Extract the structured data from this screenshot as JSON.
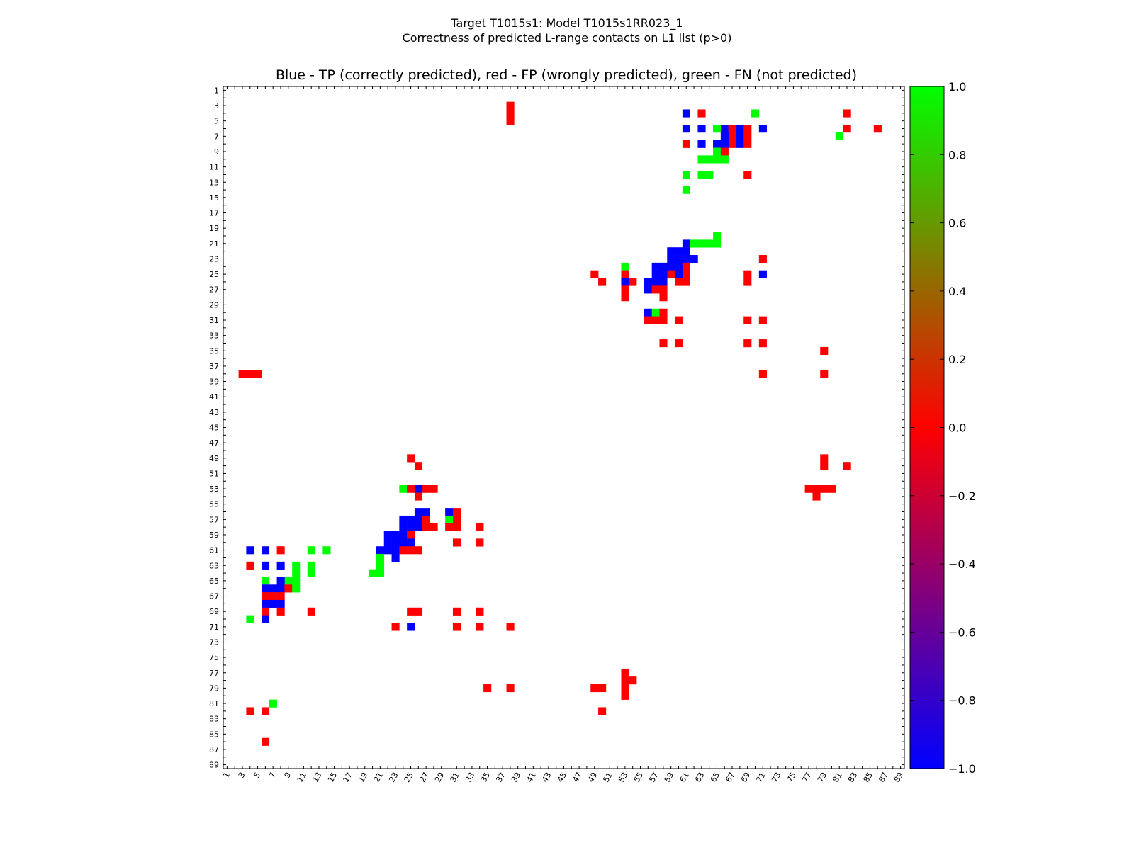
{
  "chart_data": {
    "type": "heatmap",
    "suptitle": [
      "Target T1015s1: Model T1015s1RR023_1",
      "Correctness of predicted L-range contacts on L1 list (p>0)"
    ],
    "title": "Blue - TP (correctly predicted), red - FP (wrongly predicted), green - FN (not predicted)",
    "n_residues": 89,
    "x_ticks": [
      1,
      3,
      5,
      7,
      9,
      11,
      13,
      15,
      17,
      19,
      21,
      23,
      25,
      27,
      29,
      31,
      33,
      35,
      37,
      39,
      41,
      43,
      45,
      47,
      49,
      51,
      53,
      55,
      57,
      59,
      61,
      63,
      65,
      67,
      69,
      71,
      73,
      75,
      77,
      79,
      81,
      83,
      85,
      87,
      89
    ],
    "y_ticks": [
      1,
      3,
      5,
      7,
      9,
      11,
      13,
      15,
      17,
      19,
      21,
      23,
      25,
      27,
      29,
      31,
      33,
      35,
      37,
      39,
      41,
      43,
      45,
      47,
      49,
      51,
      53,
      55,
      57,
      59,
      61,
      63,
      65,
      67,
      69,
      71,
      73,
      75,
      77,
      79,
      81,
      83,
      85,
      87,
      89
    ],
    "colorbar": {
      "min": -1.0,
      "max": 1.0,
      "colors": [
        "#0000ff",
        "#ff0000",
        "#00ff00"
      ],
      "ticks": [
        "1.0",
        "0.8",
        "0.6",
        "0.4",
        "0.2",
        "0.0",
        "−0.2",
        "−0.4",
        "−0.6",
        "−0.8",
        "−1.0"
      ]
    },
    "legend": {
      "TP": -1,
      "FP": 0,
      "FN": 1
    },
    "cells": [
      {
        "c": "fp",
        "y": [
          3,
          4,
          5
        ],
        "x": [
          38
        ]
      },
      {
        "c": "tp",
        "y": [
          4
        ],
        "x": [
          61
        ]
      },
      {
        "c": "fp",
        "y": [
          4
        ],
        "x": [
          63,
          82
        ]
      },
      {
        "c": "fn",
        "y": [
          4
        ],
        "x": [
          70
        ]
      },
      {
        "c": "tp",
        "y": [
          6
        ],
        "x": [
          61,
          63,
          66,
          68,
          71
        ]
      },
      {
        "c": "fn",
        "y": [
          6
        ],
        "x": [
          65
        ]
      },
      {
        "c": "fp",
        "y": [
          6,
          7,
          8
        ],
        "x": [
          67
        ]
      },
      {
        "c": "fp",
        "y": [
          6
        ],
        "x": [
          69,
          82,
          86
        ]
      },
      {
        "c": "tp",
        "y": [
          7,
          8
        ],
        "x": [
          66,
          68
        ]
      },
      {
        "c": "fp",
        "y": [
          7
        ],
        "x": [
          69
        ]
      },
      {
        "c": "fn",
        "y": [
          7
        ],
        "x": [
          81
        ]
      },
      {
        "c": "fp",
        "y": [
          8
        ],
        "x": [
          61,
          69
        ]
      },
      {
        "c": "tp",
        "y": [
          8
        ],
        "x": [
          63,
          65
        ]
      },
      {
        "c": "fn",
        "y": [
          9
        ],
        "x": [
          65
        ]
      },
      {
        "c": "fp",
        "y": [
          9
        ],
        "x": [
          66
        ]
      },
      {
        "c": "fn",
        "y": [
          10
        ],
        "x": [
          63,
          64,
          65,
          66
        ]
      },
      {
        "c": "fn",
        "y": [
          12
        ],
        "x": [
          61,
          63,
          64
        ]
      },
      {
        "c": "fp",
        "y": [
          12
        ],
        "x": [
          69
        ]
      },
      {
        "c": "fn",
        "y": [
          14
        ],
        "x": [
          61
        ]
      },
      {
        "c": "fn",
        "y": [
          20
        ],
        "x": [
          65
        ]
      },
      {
        "c": "tp",
        "y": [
          21
        ],
        "x": [
          61
        ]
      },
      {
        "c": "fn",
        "y": [
          21
        ],
        "x": [
          62,
          63,
          64,
          65
        ]
      },
      {
        "c": "tp",
        "y": [
          22
        ],
        "x": [
          59,
          60,
          61
        ]
      },
      {
        "c": "tp",
        "y": [
          23
        ],
        "x": [
          59,
          60,
          61,
          62
        ]
      },
      {
        "c": "fp",
        "y": [
          23
        ],
        "x": [
          71
        ]
      },
      {
        "c": "tp",
        "y": [
          24
        ],
        "x": [
          57,
          58,
          59,
          60
        ]
      },
      {
        "c": "fn",
        "y": [
          24
        ],
        "x": [
          53
        ]
      },
      {
        "c": "fp",
        "y": [
          24
        ],
        "x": [
          61
        ]
      },
      {
        "c": "fp",
        "y": [
          25
        ],
        "x": [
          49,
          53,
          59,
          61,
          69
        ]
      },
      {
        "c": "tp",
        "y": [
          25
        ],
        "x": [
          57,
          58,
          60
        ]
      },
      {
        "c": "tp",
        "y": [
          25
        ],
        "x": [
          71
        ]
      },
      {
        "c": "fp",
        "y": [
          26
        ],
        "x": [
          50,
          54,
          60,
          61,
          69
        ]
      },
      {
        "c": "tp",
        "y": [
          26
        ],
        "x": [
          53,
          56,
          57,
          58
        ]
      },
      {
        "c": "tp",
        "y": [
          27
        ],
        "x": [
          56
        ]
      },
      {
        "c": "fp",
        "y": [
          27
        ],
        "x": [
          53,
          57,
          58
        ]
      },
      {
        "c": "fp",
        "y": [
          28
        ],
        "x": [
          53,
          58
        ]
      },
      {
        "c": "tp",
        "y": [
          30
        ],
        "x": [
          56
        ]
      },
      {
        "c": "fn",
        "y": [
          30
        ],
        "x": [
          57
        ]
      },
      {
        "c": "fp",
        "y": [
          30
        ],
        "x": [
          58
        ]
      },
      {
        "c": "fp",
        "y": [
          31
        ],
        "x": [
          56,
          57,
          58,
          60,
          69,
          71
        ]
      },
      {
        "c": "fp",
        "y": [
          34
        ],
        "x": [
          58,
          60,
          69,
          71
        ]
      },
      {
        "c": "fp",
        "y": [
          35
        ],
        "x": [
          79
        ]
      },
      {
        "c": "fp",
        "y": [
          38
        ],
        "x": [
          3,
          4,
          5,
          71,
          79
        ]
      },
      {
        "c": "fp",
        "y": [
          49
        ],
        "x": [
          25,
          79
        ]
      },
      {
        "c": "fp",
        "y": [
          50
        ],
        "x": [
          26,
          79,
          82
        ]
      },
      {
        "c": "fn",
        "y": [
          53
        ],
        "x": [
          24
        ]
      },
      {
        "c": "fp",
        "y": [
          53
        ],
        "x": [
          25,
          27,
          28,
          77,
          78,
          79,
          80
        ]
      },
      {
        "c": "tp",
        "y": [
          53
        ],
        "x": [
          26
        ]
      },
      {
        "c": "fp",
        "y": [
          54
        ],
        "x": [
          26,
          78
        ]
      },
      {
        "c": "tp",
        "y": [
          56
        ],
        "x": [
          26,
          27,
          30
        ]
      },
      {
        "c": "fp",
        "y": [
          56
        ],
        "x": [
          31
        ]
      },
      {
        "c": "tp",
        "y": [
          57
        ],
        "x": [
          24,
          25,
          26
        ]
      },
      {
        "c": "fp",
        "y": [
          57
        ],
        "x": [
          27,
          31
        ]
      },
      {
        "c": "fn",
        "y": [
          57
        ],
        "x": [
          30
        ]
      },
      {
        "c": "tp",
        "y": [
          58
        ],
        "x": [
          24,
          25,
          26
        ]
      },
      {
        "c": "fp",
        "y": [
          58
        ],
        "x": [
          27,
          28,
          30,
          31,
          34
        ]
      },
      {
        "c": "tp",
        "y": [
          59
        ],
        "x": [
          22,
          23,
          24
        ]
      },
      {
        "c": "fp",
        "y": [
          59
        ],
        "x": [
          25
        ]
      },
      {
        "c": "tp",
        "y": [
          60
        ],
        "x": [
          22,
          23,
          24,
          25
        ]
      },
      {
        "c": "fp",
        "y": [
          60
        ],
        "x": [
          31,
          34
        ]
      },
      {
        "c": "tp",
        "y": [
          61
        ],
        "x": [
          4,
          6,
          21,
          22,
          23
        ]
      },
      {
        "c": "fp",
        "y": [
          61
        ],
        "x": [
          8,
          24,
          25,
          26
        ]
      },
      {
        "c": "fn",
        "y": [
          61
        ],
        "x": [
          12,
          14
        ]
      },
      {
        "c": "tp",
        "y": [
          62
        ],
        "x": [
          23
        ]
      },
      {
        "c": "fn",
        "y": [
          62
        ],
        "x": [
          21
        ]
      },
      {
        "c": "fp",
        "y": [
          63
        ],
        "x": [
          4
        ]
      },
      {
        "c": "tp",
        "y": [
          63
        ],
        "x": [
          6,
          8
        ]
      },
      {
        "c": "fn",
        "y": [
          63
        ],
        "x": [
          10,
          12,
          21
        ]
      },
      {
        "c": "fn",
        "y": [
          64
        ],
        "x": [
          10,
          12,
          20,
          21
        ]
      },
      {
        "c": "fn",
        "y": [
          65
        ],
        "x": [
          6,
          9,
          10
        ]
      },
      {
        "c": "tp",
        "y": [
          65
        ],
        "x": [
          8
        ]
      },
      {
        "c": "tp",
        "y": [
          66
        ],
        "x": [
          6,
          7,
          8
        ]
      },
      {
        "c": "fp",
        "y": [
          66
        ],
        "x": [
          9
        ]
      },
      {
        "c": "fn",
        "y": [
          66
        ],
        "x": [
          10
        ]
      },
      {
        "c": "fp",
        "y": [
          67
        ],
        "x": [
          6,
          7,
          8
        ]
      },
      {
        "c": "tp",
        "y": [
          68
        ],
        "x": [
          6,
          7,
          8
        ]
      },
      {
        "c": "fp",
        "y": [
          69
        ],
        "x": [
          6,
          8,
          12,
          25,
          26,
          31,
          34
        ]
      },
      {
        "c": "fn",
        "y": [
          70
        ],
        "x": [
          4
        ]
      },
      {
        "c": "tp",
        "y": [
          70
        ],
        "x": [
          6
        ]
      },
      {
        "c": "fp",
        "y": [
          71
        ],
        "x": [
          23,
          31,
          34,
          38
        ]
      },
      {
        "c": "tp",
        "y": [
          71
        ],
        "x": [
          25
        ]
      },
      {
        "c": "fp",
        "y": [
          77
        ],
        "x": [
          53
        ]
      },
      {
        "c": "fp",
        "y": [
          78
        ],
        "x": [
          53,
          54
        ]
      },
      {
        "c": "fp",
        "y": [
          79
        ],
        "x": [
          35,
          38,
          49,
          50,
          53
        ]
      },
      {
        "c": "fp",
        "y": [
          80
        ],
        "x": [
          53
        ]
      },
      {
        "c": "fn",
        "y": [
          81
        ],
        "x": [
          7
        ]
      },
      {
        "c": "fp",
        "y": [
          82
        ],
        "x": [
          4,
          6,
          50
        ]
      },
      {
        "c": "fp",
        "y": [
          86
        ],
        "x": [
          6
        ]
      }
    ]
  }
}
